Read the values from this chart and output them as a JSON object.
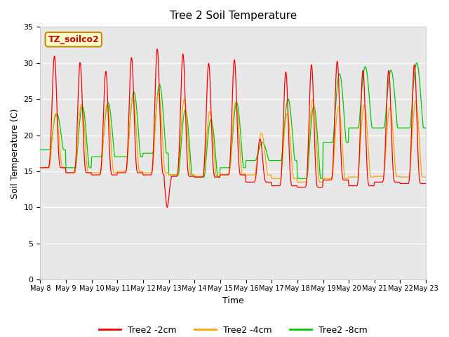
{
  "title": "Tree 2 Soil Temperature",
  "xlabel": "Time",
  "ylabel": "Soil Temperature (C)",
  "annotation": "TZ_soilco2",
  "ylim": [
    0,
    35
  ],
  "background_color": "#ffffff",
  "plot_bg_color": "#e8e8e8",
  "legend": [
    "Tree2 -2cm",
    "Tree2 -4cm",
    "Tree2 -8cm"
  ],
  "line_colors": [
    "#ff0000",
    "#ffa500",
    "#00cc00"
  ],
  "x_tick_labels": [
    "May 8",
    "May 9",
    "May 10",
    "May 11",
    "May 12",
    "May 13",
    "May 14",
    "May 15",
    "May 16",
    "May 17",
    "May 18",
    "May 19",
    "May 20",
    "May 21",
    "May 22",
    "May 23"
  ],
  "title_fontsize": 11,
  "annotation_fontsize": 9,
  "legend_fontsize": 9,
  "xlabel_fontsize": 9,
  "ylabel_fontsize": 9
}
